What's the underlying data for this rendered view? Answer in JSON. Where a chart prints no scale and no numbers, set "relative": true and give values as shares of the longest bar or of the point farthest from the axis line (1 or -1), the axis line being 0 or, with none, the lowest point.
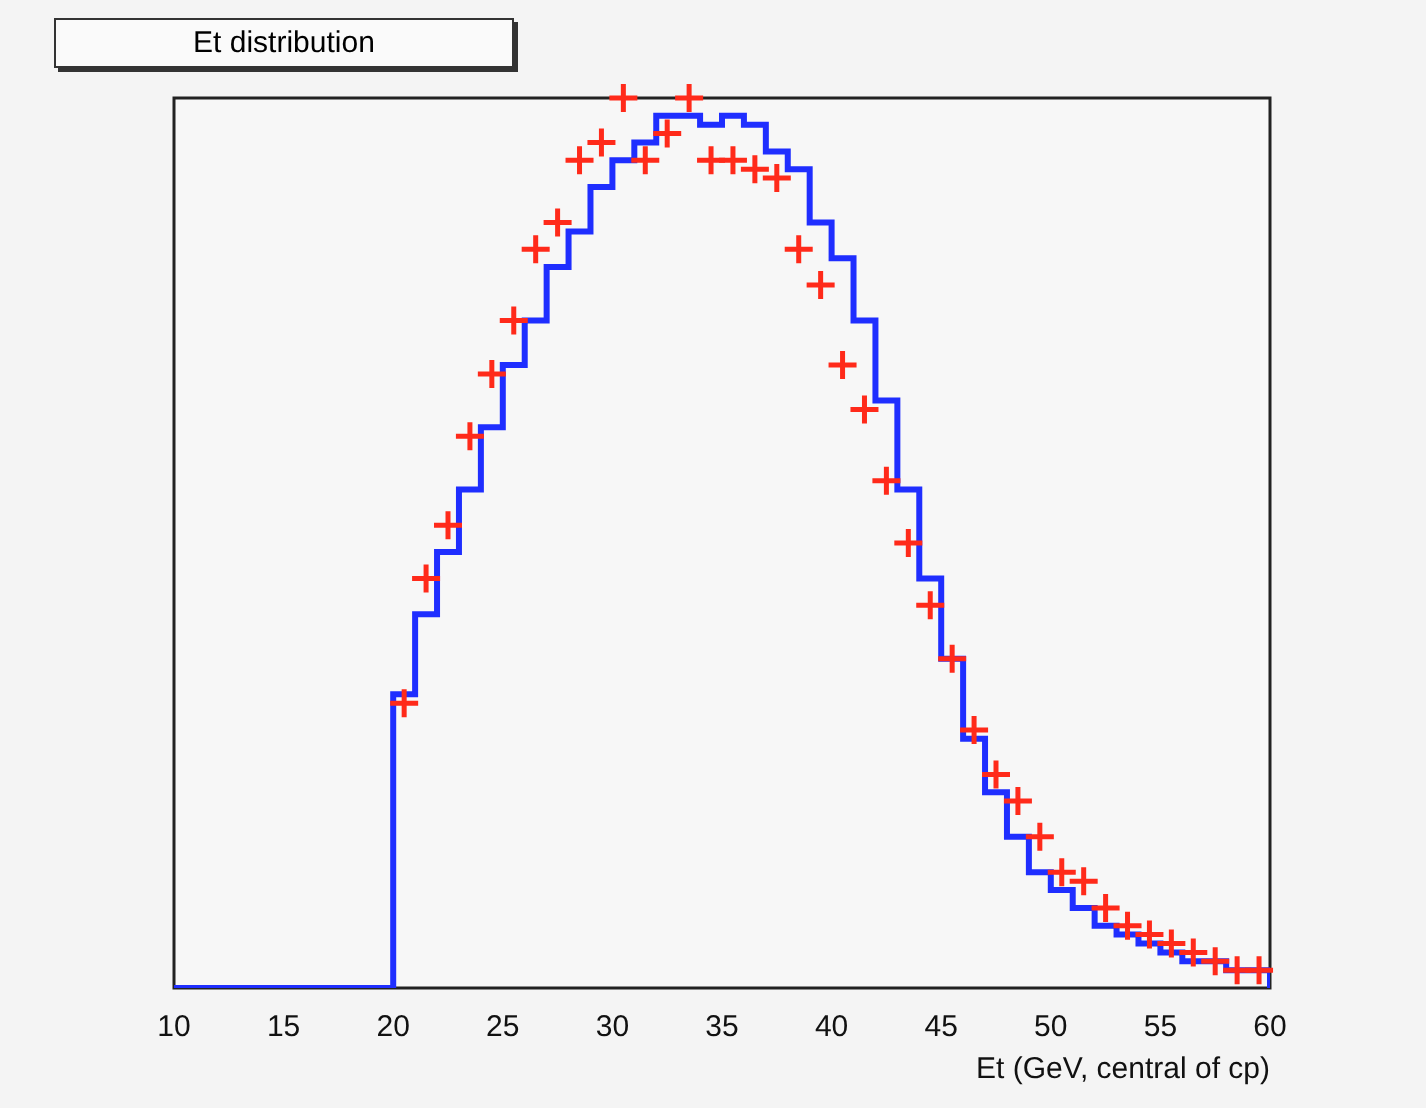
{
  "chart_data": {
    "type": "histogram",
    "title": "Et distribution",
    "xlabel": "Et (GeV, central of cp)",
    "relative": true,
    "tick_labels": "x",
    "legend": false,
    "grid": false,
    "bins": [
      10,
      11,
      12,
      13,
      14,
      15,
      16,
      17,
      18,
      19,
      20,
      21,
      22,
      23,
      24,
      25,
      26,
      27,
      28,
      29,
      30,
      31,
      32,
      33,
      34,
      35,
      36,
      37,
      38,
      39,
      40,
      41,
      42,
      43,
      44,
      45,
      46,
      47,
      48,
      49,
      50,
      51,
      52,
      53,
      54,
      55,
      56,
      57,
      58,
      59,
      60
    ],
    "xlim": [
      10,
      60
    ],
    "xticks": [
      10,
      15,
      20,
      25,
      30,
      35,
      40,
      45,
      50,
      55,
      60
    ],
    "series": [
      {
        "color": "#1f2eff",
        "values": [
          0,
          0,
          0,
          0,
          0,
          0,
          0,
          0,
          0,
          0,
          0.33,
          0.42,
          0.49,
          0.56,
          0.63,
          0.7,
          0.75,
          0.81,
          0.85,
          0.9,
          0.93,
          0.95,
          0.98,
          0.98,
          0.97,
          0.98,
          0.97,
          0.94,
          0.92,
          0.86,
          0.82,
          0.75,
          0.66,
          0.56,
          0.46,
          0.37,
          0.28,
          0.22,
          0.17,
          0.13,
          0.11,
          0.09,
          0.07,
          0.06,
          0.05,
          0.04,
          0.03,
          0.03,
          0.02,
          0.02
        ]
      },
      {
        "type": "scatter",
        "color": "#ff2a1a",
        "marker": "cross",
        "x": [
          20.5,
          21.5,
          22.5,
          23.5,
          24.5,
          25.5,
          26.5,
          27.5,
          28.5,
          29.5,
          30.5,
          31.5,
          32.5,
          33.5,
          34.5,
          35.5,
          36.5,
          37.5,
          38.5,
          39.5,
          40.5,
          41.5,
          42.5,
          43.5,
          44.5,
          45.5,
          46.5,
          47.5,
          48.5,
          49.5,
          50.5,
          51.5,
          52.5,
          53.5,
          54.5,
          55.5,
          56.5,
          57.5,
          58.5,
          59.5
        ],
        "values": [
          0.32,
          0.46,
          0.52,
          0.62,
          0.69,
          0.75,
          0.83,
          0.86,
          0.93,
          0.95,
          1.0,
          0.93,
          0.96,
          1.0,
          0.93,
          0.93,
          0.92,
          0.91,
          0.83,
          0.79,
          0.7,
          0.65,
          0.57,
          0.5,
          0.43,
          0.37,
          0.29,
          0.24,
          0.21,
          0.17,
          0.13,
          0.12,
          0.09,
          0.07,
          0.06,
          0.05,
          0.04,
          0.03,
          0.02,
          0.02
        ]
      }
    ]
  }
}
